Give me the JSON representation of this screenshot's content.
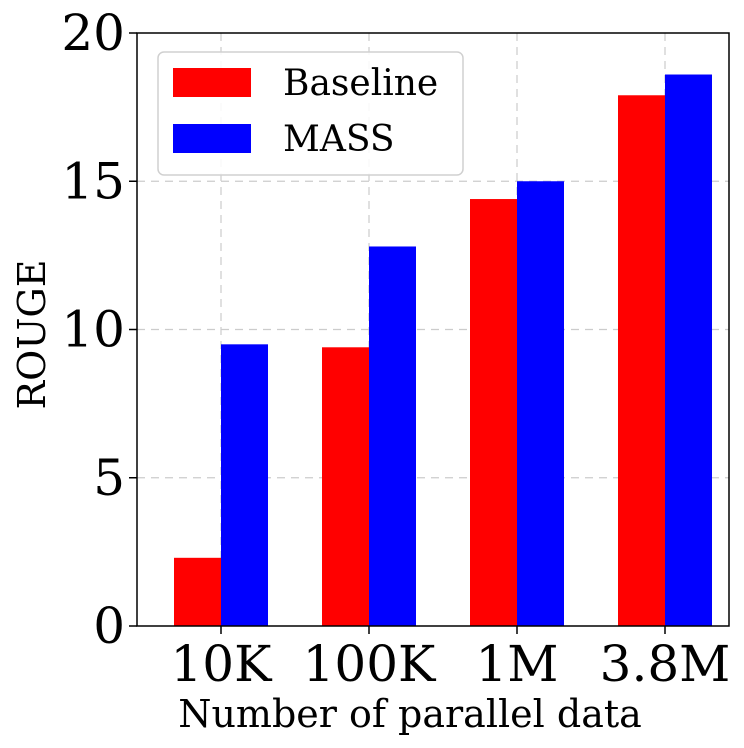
{
  "chart_data": {
    "type": "bar",
    "title": "",
    "xlabel": "Number of parallel data",
    "ylabel": "ROUGE",
    "categories": [
      "10K",
      "100K",
      "1M",
      "3.8M"
    ],
    "ylim": [
      0,
      20
    ],
    "yticks": [
      0,
      5,
      10,
      15,
      20
    ],
    "grid": true,
    "legend_position": "top-left",
    "series": [
      {
        "name": "Baseline",
        "color": "#ff0000",
        "values": [
          2.3,
          9.4,
          14.4,
          17.9
        ]
      },
      {
        "name": "MASS",
        "color": "#0000ff",
        "values": [
          9.5,
          12.8,
          15.0,
          18.6
        ]
      }
    ]
  }
}
